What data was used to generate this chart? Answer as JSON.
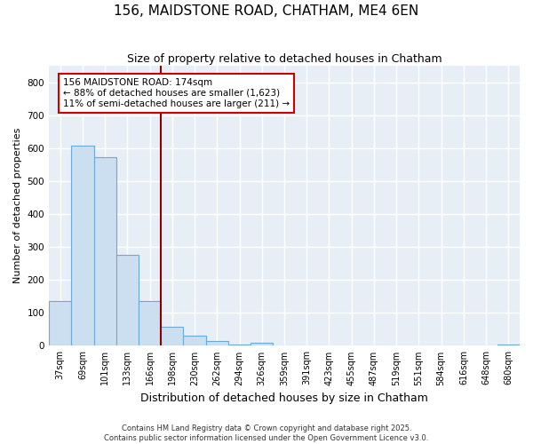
{
  "title": "156, MAIDSTONE ROAD, CHATHAM, ME4 6EN",
  "subtitle": "Size of property relative to detached houses in Chatham",
  "xlabel": "Distribution of detached houses by size in Chatham",
  "ylabel": "Number of detached properties",
  "bar_facecolor": "#ccdff0",
  "bar_edgecolor": "#6aaad4",
  "marker_line_color": "#8b0000",
  "bg_color": "#e8eef5",
  "fig_bg_color": "#ffffff",
  "grid_color": "#ffffff",
  "categories": [
    "37sqm",
    "69sqm",
    "101sqm",
    "133sqm",
    "166sqm",
    "198sqm",
    "230sqm",
    "262sqm",
    "294sqm",
    "326sqm",
    "359sqm",
    "391sqm",
    "423sqm",
    "455sqm",
    "487sqm",
    "519sqm",
    "551sqm",
    "584sqm",
    "616sqm",
    "648sqm",
    "680sqm"
  ],
  "values": [
    135,
    608,
    572,
    275,
    135,
    58,
    30,
    15,
    5,
    8,
    0,
    0,
    0,
    0,
    0,
    0,
    0,
    0,
    0,
    0,
    5
  ],
  "ylim": [
    0,
    850
  ],
  "yticks": [
    0,
    100,
    200,
    300,
    400,
    500,
    600,
    700,
    800
  ],
  "marker_bin_index": 4,
  "annotation_title": "156 MAIDSTONE ROAD: 174sqm",
  "annotation_line1": "← 88% of detached houses are smaller (1,623)",
  "annotation_line2": "11% of semi-detached houses are larger (211) →",
  "footer_line1": "Contains HM Land Registry data © Crown copyright and database right 2025.",
  "footer_line2": "Contains public sector information licensed under the Open Government Licence v3.0."
}
